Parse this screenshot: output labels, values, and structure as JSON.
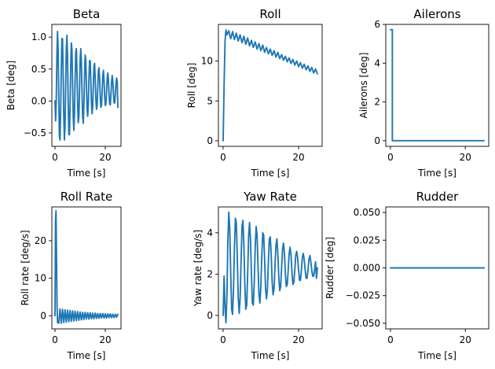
{
  "chart_data": [
    {
      "type": "line",
      "title": "Beta",
      "xlabel": "Time [s]",
      "ylabel": "Beta [deg]",
      "xlim": [
        -1.25,
        26.25
      ],
      "ylim": [
        -0.71,
        1.2
      ],
      "xticks": [
        0,
        20
      ],
      "xtick_labels": [
        "0",
        "20"
      ],
      "yticks": [
        -0.5,
        0,
        0.5,
        1.0
      ],
      "ytick_labels": [
        "−0.5",
        "0.0",
        "0.5",
        "1.0"
      ],
      "color": "#1f77b4",
      "x": [
        0.0,
        0.25,
        0.5,
        0.75,
        1.0,
        1.25,
        1.5,
        1.75,
        2.0,
        2.25,
        2.5,
        2.75,
        3.0,
        3.25,
        3.5,
        3.75,
        4.0,
        4.25,
        4.5,
        4.75,
        5.0,
        5.25,
        5.5,
        5.75,
        6.0,
        6.25,
        6.5,
        6.75,
        7.0,
        7.25,
        7.5,
        7.75,
        8.0,
        8.25,
        8.5,
        8.75,
        9.0,
        9.25,
        9.5,
        9.75,
        10.0,
        10.25,
        10.5,
        10.75,
        11.0,
        11.25,
        11.5,
        11.75,
        12.0,
        12.25,
        12.5,
        12.75,
        13.0,
        13.25,
        13.5,
        13.75,
        14.0,
        14.25,
        14.5,
        14.75,
        15.0,
        15.25,
        15.5,
        15.75,
        16.0,
        16.25,
        16.5,
        16.75,
        17.0,
        17.25,
        17.5,
        17.75,
        18.0,
        18.25,
        18.5,
        18.75,
        19.0,
        19.25,
        19.5,
        19.75,
        20.0,
        20.25,
        20.5,
        20.75,
        21.0,
        21.25,
        21.5,
        21.75,
        22.0,
        22.25,
        22.5,
        22.75,
        23.0,
        23.25,
        23.5,
        23.75,
        24.0,
        24.25,
        24.5,
        24.75,
        25.0
      ],
      "y": [
        0.0,
        -0.31,
        0.0,
        0.7,
        1.09,
        0.8,
        0.05,
        -0.55,
        -0.61,
        -0.17,
        0.5,
        0.98,
        0.97,
        0.42,
        -0.27,
        -0.61,
        -0.39,
        0.24,
        0.82,
        1.03,
        0.67,
        -0.02,
        -0.52,
        -0.53,
        -0.09,
        0.53,
        0.91,
        0.8,
        0.28,
        -0.25,
        -0.46,
        -0.2,
        0.34,
        0.76,
        0.82,
        0.44,
        -0.05,
        -0.34,
        -0.24,
        0.17,
        0.64,
        0.82,
        0.62,
        0.11,
        -0.25,
        -0.35,
        -0.05,
        0.42,
        0.72,
        0.64,
        0.25,
        -0.12,
        -0.24,
        -0.05,
        0.35,
        0.63,
        0.63,
        0.33,
        -0.04,
        -0.2,
        -0.08,
        0.25,
        0.54,
        0.59,
        0.35,
        0.03,
        -0.13,
        -0.08,
        0.2,
        0.47,
        0.52,
        0.35,
        0.06,
        -0.1,
        -0.07,
        0.16,
        0.4,
        0.48,
        0.33,
        0.07,
        -0.07,
        -0.05,
        0.13,
        0.35,
        0.44,
        0.33,
        0.09,
        -0.05,
        -0.06,
        0.1,
        0.3,
        0.4,
        0.31,
        0.11,
        -0.03,
        -0.03,
        0.1,
        0.27,
        0.36,
        0.3,
        -0.1
      ]
    },
    {
      "type": "line",
      "title": "Roll",
      "xlabel": "Time [s]",
      "ylabel": "Roll [deg]",
      "xlim": [
        -1.25,
        26.25
      ],
      "ylim": [
        -0.7,
        14.6
      ],
      "xticks": [
        0,
        20
      ],
      "xtick_labels": [
        "0",
        "20"
      ],
      "yticks": [
        0,
        5,
        10
      ],
      "ytick_labels": [
        "0",
        "5",
        "10"
      ],
      "color": "#1f77b4",
      "x": [
        0.0,
        0.25,
        0.5,
        0.75,
        1.0,
        1.5,
        2.0,
        2.5,
        3.0,
        3.5,
        4.0,
        4.5,
        5.0,
        5.5,
        6.0,
        6.5,
        7.0,
        7.5,
        8.0,
        8.5,
        9.0,
        9.5,
        10.0,
        10.5,
        11.0,
        11.5,
        12.0,
        12.5,
        13.0,
        13.5,
        14.0,
        14.5,
        15.0,
        15.5,
        16.0,
        16.5,
        17.0,
        17.5,
        18.0,
        18.5,
        19.0,
        19.5,
        20.0,
        20.5,
        21.0,
        21.5,
        22.0,
        22.5,
        23.0,
        23.5,
        24.0,
        24.5,
        25.0
      ],
      "y": [
        0.0,
        7.0,
        12.5,
        13.9,
        13.3,
        13.8,
        12.8,
        13.7,
        12.7,
        13.5,
        12.5,
        13.3,
        12.3,
        13.1,
        12.1,
        12.9,
        11.9,
        12.6,
        11.7,
        12.4,
        11.5,
        12.2,
        11.3,
        12.0,
        11.1,
        11.7,
        10.9,
        11.5,
        10.7,
        11.3,
        10.5,
        11.1,
        10.3,
        10.8,
        10.1,
        10.6,
        9.9,
        10.4,
        9.7,
        10.2,
        9.5,
        10.0,
        9.3,
        9.8,
        9.1,
        9.6,
        8.9,
        9.4,
        8.7,
        9.2,
        8.5,
        9.0,
        8.4
      ]
    },
    {
      "type": "line",
      "title": "Ailerons",
      "xlabel": "Time [s]",
      "ylabel": "Ailerons [deg]",
      "xlim": [
        -1.25,
        26.25
      ],
      "ylim": [
        -0.29,
        6.0
      ],
      "xticks": [
        0,
        20
      ],
      "xtick_labels": [
        "0",
        "20"
      ],
      "yticks": [
        0,
        2,
        4,
        6
      ],
      "ytick_labels": [
        "0",
        "2",
        "4",
        "6"
      ],
      "color": "#1f77b4",
      "x": [
        0.0,
        0.5,
        0.5,
        25.0
      ],
      "y": [
        5.73,
        5.73,
        0.0,
        0.0
      ]
    },
    {
      "type": "line",
      "title": "Roll Rate",
      "xlabel": "Time [s]",
      "ylabel": "Roll rate [deg/s]",
      "xlim": [
        -1.25,
        26.25
      ],
      "ylim": [
        -3.5,
        29.0
      ],
      "xticks": [
        0,
        20
      ],
      "xtick_labels": [
        "0",
        "20"
      ],
      "yticks": [
        0,
        10,
        20
      ],
      "ytick_labels": [
        "0",
        "10",
        "20"
      ],
      "color": "#1f77b4",
      "x": [
        0.0,
        0.2,
        0.4,
        0.6,
        0.8,
        1.0,
        1.5,
        2.0,
        2.5,
        3.0,
        3.5,
        4.0,
        4.5,
        5.0,
        5.5,
        6.0,
        6.5,
        7.0,
        7.5,
        8.0,
        8.5,
        9.0,
        9.5,
        10.0,
        10.5,
        11.0,
        11.5,
        12.0,
        12.5,
        13.0,
        13.5,
        14.0,
        14.5,
        15.0,
        15.5,
        16.0,
        16.5,
        17.0,
        17.5,
        18.0,
        18.5,
        19.0,
        19.5,
        20.0,
        20.5,
        21.0,
        21.5,
        22.0,
        22.5,
        23.0,
        23.5,
        24.0,
        24.5,
        25.0
      ],
      "y": [
        0.0,
        25.0,
        28.0,
        16.0,
        3.0,
        -1.8,
        -2.0,
        1.8,
        -2.0,
        1.7,
        -1.8,
        1.6,
        -1.7,
        1.5,
        -1.6,
        1.4,
        -1.5,
        1.3,
        -1.4,
        1.2,
        -1.3,
        1.1,
        -1.2,
        1.0,
        -1.1,
        0.9,
        -1.0,
        0.9,
        -0.9,
        0.8,
        -0.9,
        0.8,
        -0.8,
        0.7,
        -0.8,
        0.7,
        -0.7,
        0.6,
        -0.7,
        0.6,
        -0.6,
        0.6,
        -0.6,
        0.5,
        -0.6,
        0.5,
        -0.5,
        0.5,
        -0.5,
        0.4,
        -0.5,
        0.4,
        -0.4,
        0.4
      ]
    },
    {
      "type": "line",
      "title": "Yaw Rate",
      "xlabel": "Time [s]",
      "ylabel": "Yaw rate [deg/s]",
      "xlim": [
        -1.25,
        26.25
      ],
      "ylim": [
        -0.65,
        5.25
      ],
      "xticks": [
        0,
        20
      ],
      "xtick_labels": [
        "0",
        "20"
      ],
      "yticks": [
        0,
        2,
        4
      ],
      "ytick_labels": [
        "0",
        "2",
        "4"
      ],
      "color": "#1f77b4",
      "x": [
        0.0,
        0.25,
        0.5,
        0.75,
        1.0,
        1.25,
        1.5,
        1.75,
        2.0,
        2.25,
        2.5,
        2.75,
        3.0,
        3.25,
        3.5,
        3.75,
        4.0,
        4.25,
        4.5,
        4.75,
        5.0,
        5.25,
        5.5,
        5.75,
        6.0,
        6.25,
        6.5,
        6.75,
        7.0,
        7.25,
        7.5,
        7.75,
        8.0,
        8.25,
        8.5,
        8.75,
        9.0,
        9.25,
        9.5,
        9.75,
        10.0,
        10.25,
        10.5,
        10.75,
        11.0,
        11.25,
        11.5,
        11.75,
        12.0,
        12.25,
        12.5,
        12.75,
        13.0,
        13.25,
        13.5,
        13.75,
        14.0,
        14.25,
        14.5,
        14.75,
        15.0,
        15.25,
        15.5,
        15.75,
        16.0,
        16.25,
        16.5,
        16.75,
        17.0,
        17.25,
        17.5,
        17.75,
        18.0,
        18.25,
        18.5,
        18.75,
        19.0,
        19.25,
        19.5,
        19.75,
        20.0,
        20.25,
        20.5,
        20.75,
        21.0,
        21.25,
        21.5,
        21.75,
        22.0,
        22.25,
        22.5,
        22.75,
        23.0,
        23.25,
        23.5,
        23.75,
        24.0,
        24.25,
        24.5,
        24.75,
        25.0
      ],
      "y": [
        0.0,
        1.9,
        0.4,
        -0.35,
        0.9,
        3.6,
        5.0,
        4.2,
        2.1,
        0.3,
        0.05,
        1.3,
        3.3,
        4.7,
        4.5,
        2.8,
        0.9,
        0.1,
        0.8,
        2.6,
        4.3,
        4.6,
        3.4,
        1.5,
        0.3,
        0.5,
        2.0,
        3.8,
        4.5,
        3.7,
        2.0,
        0.6,
        0.5,
        1.6,
        3.3,
        4.3,
        3.9,
        2.4,
        1.0,
        0.6,
        1.4,
        2.9,
        4.0,
        3.9,
        2.7,
        1.3,
        0.8,
        1.3,
        2.6,
        3.7,
        3.8,
        2.9,
        1.6,
        1.0,
        1.3,
        2.4,
        3.4,
        3.7,
        3.0,
        1.9,
        1.2,
        1.4,
        2.3,
        3.2,
        3.5,
        3.0,
        2.0,
        1.4,
        1.5,
        2.2,
        3.0,
        3.3,
        2.9,
        2.1,
        1.5,
        1.6,
        2.2,
        2.9,
        3.1,
        2.8,
        2.2,
        1.7,
        1.7,
        2.2,
        2.8,
        3.0,
        2.7,
        2.2,
        1.8,
        1.8,
        2.2,
        2.7,
        2.9,
        2.6,
        2.2,
        1.9,
        1.9,
        2.2,
        2.6,
        1.8,
        2.3
      ]
    },
    {
      "type": "line",
      "title": "Rudder",
      "xlabel": "Time [s]",
      "ylabel": "Rudder [deg]",
      "xlim": [
        -1.25,
        26.25
      ],
      "ylim": [
        -0.055,
        0.055
      ],
      "xticks": [
        0,
        20
      ],
      "xtick_labels": [
        "0",
        "20"
      ],
      "yticks": [
        -0.05,
        -0.025,
        0.0,
        0.025,
        0.05
      ],
      "ytick_labels": [
        "−0.050",
        "−0.025",
        "0.000",
        "0.025",
        "0.050"
      ],
      "color": "#1f77b4",
      "x": [
        0.0,
        25.0
      ],
      "y": [
        0.0,
        0.0
      ]
    }
  ]
}
